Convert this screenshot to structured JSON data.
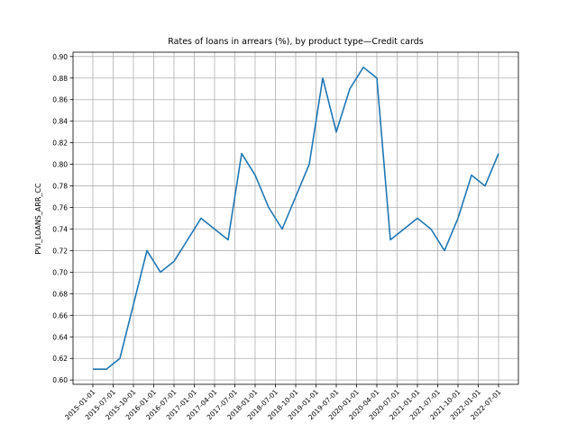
{
  "chart_data": {
    "type": "line",
    "title": "Rates of loans in arrears (%), by product type—Credit cards",
    "y_label": "PVI_LOANS_ARR_CC",
    "series": [
      {
        "name": "PVI_LOANS_ARR_CC",
        "color": "#1f77b4",
        "values": [
          0.61,
          0.61,
          0.62,
          0.67,
          0.72,
          0.7,
          0.71,
          0.73,
          0.75,
          0.74,
          0.73,
          0.81,
          0.79,
          0.76,
          0.74,
          0.77,
          0.8,
          0.88,
          0.83,
          0.87,
          0.89,
          0.88,
          0.73,
          0.74,
          0.75,
          0.74,
          0.72,
          0.75,
          0.79,
          0.78,
          0.81
        ]
      }
    ],
    "xticks": [
      "2015-01-01",
      "2015-07-01",
      "2015-10-01",
      "2016-01-01",
      "2016-07-01",
      "2017-01-01",
      "2017-04-01",
      "2017-07-01",
      "2018-01-01",
      "2018-07-01",
      "2018-10-01",
      "2019-01-01",
      "2019-07-01",
      "2020-01-01",
      "2020-04-01",
      "2020-07-01",
      "2021-01-01",
      "2021-07-01",
      "2021-10-01",
      "2022-01-01",
      "2022-07-01"
    ],
    "ylim": [
      0.596,
      0.904
    ],
    "yticks": [
      {
        "value": 0.6,
        "label": "0.60"
      },
      {
        "value": 0.62,
        "label": "0.62"
      },
      {
        "value": 0.64,
        "label": "0.64"
      },
      {
        "value": 0.66,
        "label": "0.66"
      },
      {
        "value": 0.68,
        "label": "0.68"
      },
      {
        "value": 0.7,
        "label": "0.70"
      },
      {
        "value": 0.72,
        "label": "0.72"
      },
      {
        "value": 0.74,
        "label": "0.74"
      },
      {
        "value": 0.76,
        "label": "0.76"
      },
      {
        "value": 0.78,
        "label": "0.78"
      },
      {
        "value": 0.8,
        "label": "0.80"
      },
      {
        "value": 0.82,
        "label": "0.82"
      },
      {
        "value": 0.84,
        "label": "0.84"
      },
      {
        "value": 0.86,
        "label": "0.86"
      },
      {
        "value": 0.88,
        "label": "0.88"
      },
      {
        "value": 0.9,
        "label": "0.90"
      }
    ],
    "grid": true
  }
}
